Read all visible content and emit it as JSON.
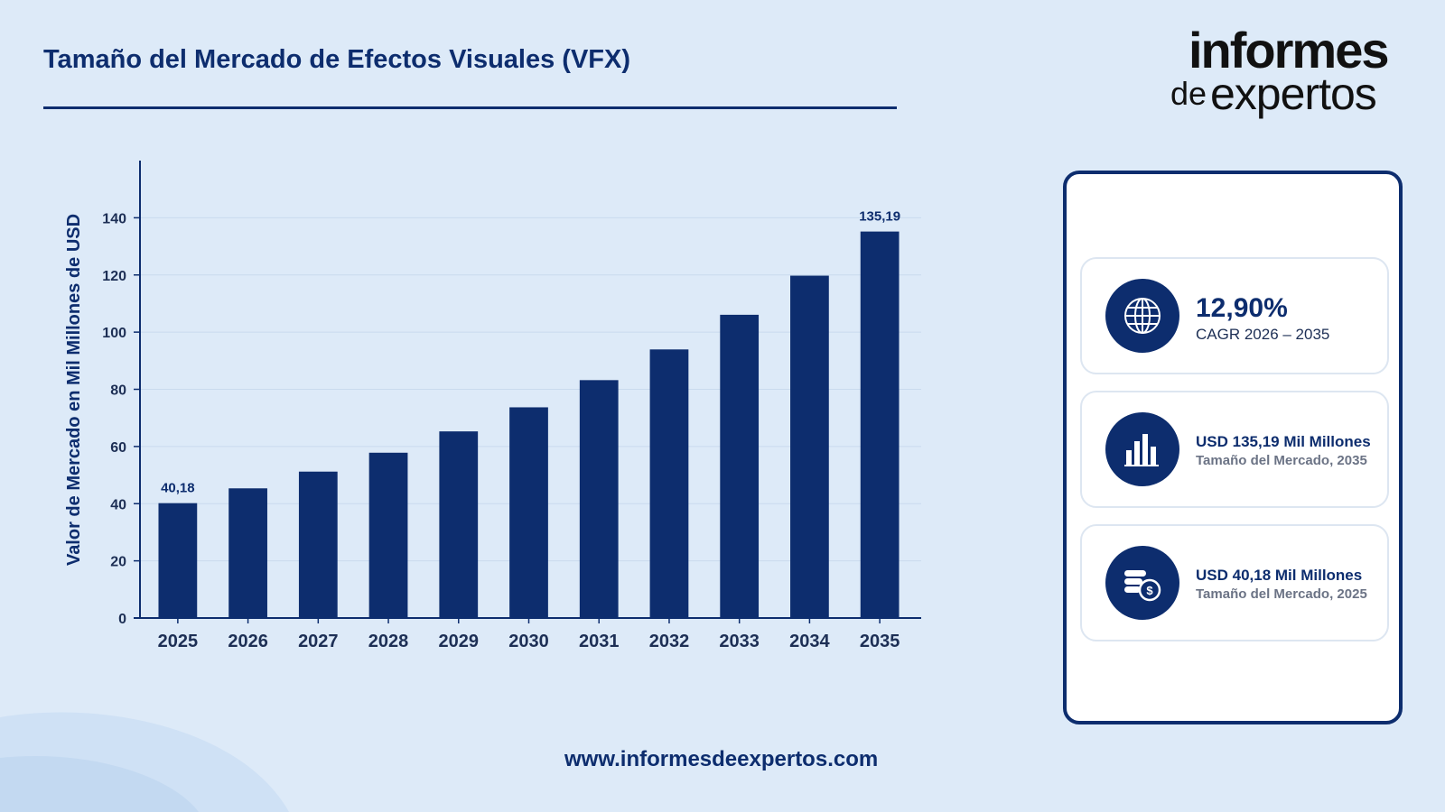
{
  "header": {
    "title": "Tamaño del Mercado de Efectos Visuales (VFX)"
  },
  "logo": {
    "line1": "informes",
    "line2_de": "de",
    "line2_main": "expertos"
  },
  "footer": {
    "url": "www.informesdeexpertos.com"
  },
  "colors": {
    "primary": "#0d2d6e",
    "background": "#ddeaf8",
    "bar": "#0d2d6e",
    "panel_border": "#0d2d6e"
  },
  "stats": [
    {
      "icon": "globe-icon",
      "value": "12,90%",
      "label": "CAGR 2026 – 2035"
    },
    {
      "icon": "bar-chart-icon",
      "value": "USD 135,19 Mil Millones",
      "label": "Tamaño del Mercado, 2035"
    },
    {
      "icon": "coins-dollar-icon",
      "value": "USD 40,18 Mil Millones",
      "label": "Tamaño del Mercado, 2025"
    }
  ],
  "chart_data": {
    "type": "bar",
    "title": "",
    "xlabel": "",
    "ylabel": "Valor de Mercado en Mil Millones de USD",
    "categories": [
      "2025",
      "2026",
      "2027",
      "2028",
      "2029",
      "2030",
      "2031",
      "2032",
      "2033",
      "2034",
      "2035"
    ],
    "values": [
      40.18,
      45.36,
      51.21,
      57.82,
      65.28,
      73.7,
      83.21,
      93.95,
      106.07,
      119.75,
      135.19
    ],
    "data_labels": [
      {
        "index": 0,
        "text": "40,18"
      },
      {
        "index": 10,
        "text": "135,19"
      }
    ],
    "ylim": [
      0,
      160
    ],
    "yticks": [
      0,
      20,
      40,
      60,
      80,
      100,
      120,
      140
    ],
    "grid": true,
    "legend": "none"
  }
}
